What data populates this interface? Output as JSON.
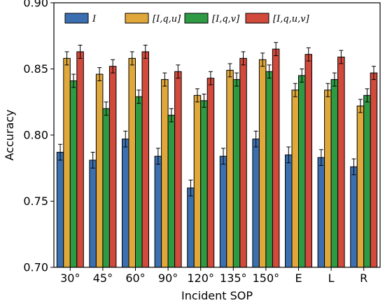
{
  "chart_data": {
    "type": "bar",
    "xlabel": "Incident SOP",
    "ylabel": "Accuracy",
    "ylim": [
      0.7,
      0.9
    ],
    "yticks": [
      "0.70",
      "0.75",
      "0.80",
      "0.85",
      "0.90"
    ],
    "grid": false,
    "legend_position": "top",
    "categories": [
      "30°",
      "45°",
      "60°",
      "90°",
      "120°",
      "135°",
      "150°",
      "E",
      "L",
      "R"
    ],
    "series": [
      {
        "name": "I",
        "color": "#3b6fb0",
        "values": [
          0.787,
          0.781,
          0.797,
          0.784,
          0.76,
          0.784,
          0.797,
          0.785,
          0.783,
          0.776
        ],
        "errors": [
          0.006,
          0.006,
          0.006,
          0.006,
          0.006,
          0.006,
          0.006,
          0.006,
          0.006,
          0.006
        ]
      },
      {
        "name": "[I,q,u]",
        "color": "#e0a83a",
        "values": [
          0.858,
          0.846,
          0.858,
          0.842,
          0.83,
          0.849,
          0.857,
          0.834,
          0.834,
          0.822
        ],
        "errors": [
          0.005,
          0.005,
          0.005,
          0.005,
          0.005,
          0.005,
          0.005,
          0.005,
          0.005,
          0.005
        ]
      },
      {
        "name": "[I,q,v]",
        "color": "#2f9a44",
        "values": [
          0.841,
          0.82,
          0.829,
          0.815,
          0.826,
          0.842,
          0.848,
          0.845,
          0.842,
          0.83
        ],
        "errors": [
          0.005,
          0.005,
          0.005,
          0.005,
          0.005,
          0.005,
          0.005,
          0.005,
          0.005,
          0.005
        ]
      },
      {
        "name": "[I,q,u,v]",
        "color": "#d24a3c",
        "values": [
          0.863,
          0.852,
          0.863,
          0.848,
          0.843,
          0.858,
          0.865,
          0.861,
          0.859,
          0.847
        ],
        "errors": [
          0.005,
          0.005,
          0.005,
          0.005,
          0.005,
          0.005,
          0.005,
          0.005,
          0.005,
          0.005
        ]
      }
    ]
  }
}
